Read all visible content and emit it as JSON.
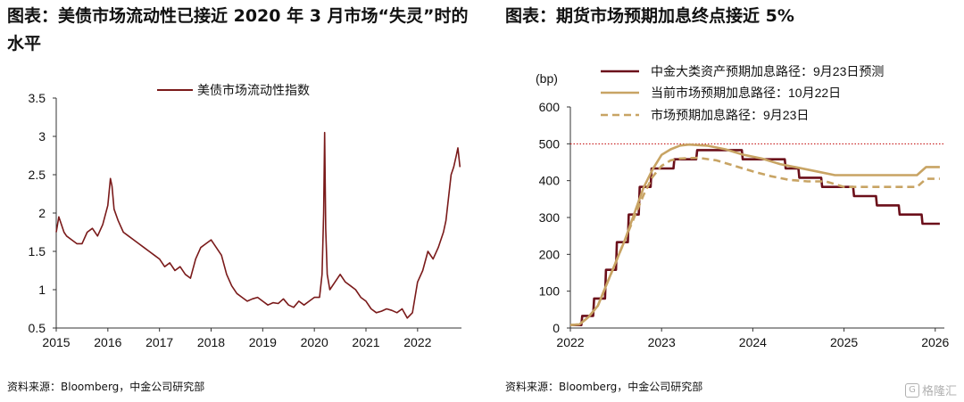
{
  "left_title": "图表：美债市场流动性已接近 2020 年 3 月市场“失灵”时的水平",
  "right_title": "图表：期货市场预期加息终点接近 5%",
  "left_source": "资料来源：Bloomberg，中金公司研究部",
  "right_source": "资料来源：Bloomberg，中金公司研究部",
  "watermark": {
    "icon": "gelonghui-logo-icon",
    "text": "格隆汇"
  },
  "chart_data": [
    {
      "type": "line",
      "title": "",
      "xlabel": "",
      "ylabel": "",
      "ylim": [
        0.5,
        3.5
      ],
      "xlim": [
        2015,
        2022.85
      ],
      "x_ticks": [
        "2015",
        "2016",
        "2017",
        "2018",
        "2019",
        "2020",
        "2021",
        "2022"
      ],
      "y_ticks": [
        "0.5",
        "1",
        "1.5",
        "2",
        "2.5",
        "3",
        "3.5"
      ],
      "grid": false,
      "legend_position": "top-center",
      "series": [
        {
          "name": "美债市场流动性指数",
          "color": "#7a1a1a",
          "x": [
            2015.0,
            2015.05,
            2015.1,
            2015.15,
            2015.2,
            2015.3,
            2015.4,
            2015.5,
            2015.6,
            2015.7,
            2015.8,
            2015.9,
            2016.0,
            2016.05,
            2016.08,
            2016.12,
            2016.2,
            2016.3,
            2016.4,
            2016.5,
            2016.6,
            2016.7,
            2016.8,
            2016.9,
            2017.0,
            2017.1,
            2017.2,
            2017.3,
            2017.4,
            2017.5,
            2017.6,
            2017.7,
            2017.8,
            2017.9,
            2018.0,
            2018.1,
            2018.2,
            2018.3,
            2018.4,
            2018.5,
            2018.6,
            2018.7,
            2018.8,
            2018.9,
            2019.0,
            2019.1,
            2019.2,
            2019.3,
            2019.4,
            2019.5,
            2019.6,
            2019.7,
            2019.8,
            2019.9,
            2020.0,
            2020.1,
            2020.15,
            2020.18,
            2020.2,
            2020.22,
            2020.25,
            2020.3,
            2020.4,
            2020.5,
            2020.6,
            2020.7,
            2020.8,
            2020.9,
            2021.0,
            2021.1,
            2021.2,
            2021.3,
            2021.4,
            2021.5,
            2021.6,
            2021.7,
            2021.8,
            2021.9,
            2022.0,
            2022.1,
            2022.2,
            2022.3,
            2022.4,
            2022.5,
            2022.55,
            2022.6,
            2022.65,
            2022.7,
            2022.75,
            2022.78,
            2022.82
          ],
          "y": [
            1.75,
            1.95,
            1.85,
            1.75,
            1.7,
            1.65,
            1.6,
            1.6,
            1.75,
            1.8,
            1.7,
            1.85,
            2.1,
            2.45,
            2.35,
            2.05,
            1.9,
            1.75,
            1.7,
            1.65,
            1.6,
            1.55,
            1.5,
            1.45,
            1.4,
            1.3,
            1.35,
            1.25,
            1.3,
            1.2,
            1.15,
            1.4,
            1.55,
            1.6,
            1.65,
            1.55,
            1.45,
            1.2,
            1.05,
            0.95,
            0.9,
            0.85,
            0.88,
            0.9,
            0.85,
            0.8,
            0.83,
            0.82,
            0.88,
            0.8,
            0.77,
            0.85,
            0.8,
            0.85,
            0.9,
            0.9,
            1.2,
            2.0,
            3.05,
            1.8,
            1.2,
            1.0,
            1.1,
            1.2,
            1.1,
            1.05,
            1.0,
            0.9,
            0.85,
            0.75,
            0.7,
            0.72,
            0.75,
            0.73,
            0.7,
            0.75,
            0.63,
            0.7,
            1.1,
            1.25,
            1.5,
            1.4,
            1.55,
            1.75,
            1.9,
            2.2,
            2.5,
            2.6,
            2.75,
            2.85,
            2.6
          ]
        }
      ]
    },
    {
      "type": "line",
      "title": "",
      "xlabel": "",
      "ylabel": "(bp)",
      "ylim": [
        0,
        600
      ],
      "xlim": [
        2022,
        2026.1
      ],
      "x_ticks": [
        "2022",
        "2023",
        "2024",
        "2025",
        "2026"
      ],
      "y_ticks": [
        "0",
        "100",
        "200",
        "300",
        "400",
        "500",
        "600"
      ],
      "grid": false,
      "legend_position": "top-right",
      "reference_line": {
        "y": 500,
        "color": "#c00000",
        "style": "dotted"
      },
      "series": [
        {
          "name": "中金大类资产预期加息路径：9月23日预测",
          "color": "#6b0f1a",
          "style": "solid",
          "x": [
            2022.0,
            2022.12,
            2022.13,
            2022.25,
            2022.26,
            2022.38,
            2022.39,
            2022.5,
            2022.51,
            2022.63,
            2022.64,
            2022.75,
            2022.76,
            2022.88,
            2022.89,
            2023.0,
            2023.01,
            2023.13,
            2023.14,
            2023.25,
            2023.26,
            2023.38,
            2023.39,
            2023.88,
            2023.89,
            2024.1,
            2024.11,
            2024.35,
            2024.36,
            2024.5,
            2024.51,
            2024.75,
            2024.76,
            2024.88,
            2024.89,
            2025.1,
            2025.11,
            2025.35,
            2025.36,
            2025.6,
            2025.61,
            2025.85,
            2025.86,
            2026.05
          ],
          "y": [
            8,
            8,
            33,
            33,
            80,
            80,
            158,
            158,
            233,
            233,
            308,
            308,
            383,
            383,
            433,
            433,
            433,
            433,
            458,
            458,
            458,
            458,
            483,
            483,
            458,
            458,
            458,
            458,
            433,
            433,
            408,
            408,
            383,
            383,
            383,
            383,
            358,
            358,
            333,
            333,
            308,
            308,
            283,
            283
          ]
        },
        {
          "name": "当前市场预期加息路径：10月22日",
          "color": "#c8a464",
          "style": "solid",
          "x": [
            2022.0,
            2022.1,
            2022.2,
            2022.3,
            2022.4,
            2022.5,
            2022.6,
            2022.7,
            2022.8,
            2022.9,
            2023.0,
            2023.1,
            2023.2,
            2023.3,
            2023.5,
            2023.7,
            2023.9,
            2024.1,
            2024.3,
            2024.5,
            2024.7,
            2024.9,
            2025.0,
            2025.3,
            2025.6,
            2025.8,
            2025.9,
            2026.05
          ],
          "y": [
            8,
            10,
            30,
            60,
            120,
            180,
            240,
            310,
            380,
            430,
            470,
            485,
            495,
            498,
            495,
            485,
            470,
            460,
            445,
            435,
            425,
            415,
            415,
            415,
            415,
            415,
            437,
            437
          ]
        },
        {
          "name": "市场预期加息路径：9月23日",
          "color": "#c8a464",
          "style": "dashed",
          "x": [
            2022.0,
            2022.1,
            2022.2,
            2022.3,
            2022.4,
            2022.5,
            2022.6,
            2022.7,
            2022.8,
            2022.9,
            2023.0,
            2023.1,
            2023.2,
            2023.4,
            2023.6,
            2023.8,
            2024.0,
            2024.2,
            2024.4,
            2024.6,
            2024.8,
            2025.0,
            2025.3,
            2025.6,
            2025.8,
            2025.9,
            2026.05
          ],
          "y": [
            8,
            10,
            30,
            60,
            120,
            180,
            240,
            300,
            360,
            410,
            440,
            455,
            460,
            462,
            455,
            440,
            425,
            412,
            402,
            398,
            398,
            383,
            383,
            383,
            383,
            405,
            405
          ]
        }
      ]
    }
  ]
}
